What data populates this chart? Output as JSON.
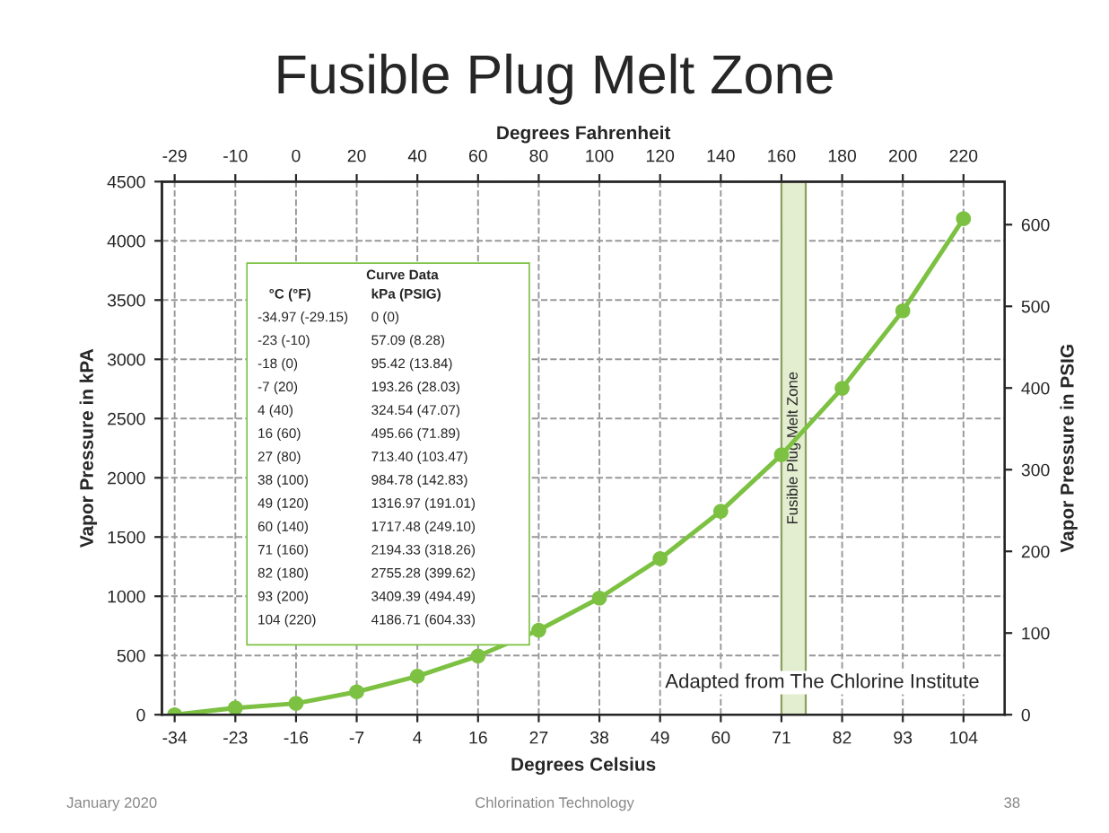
{
  "chart_data": {
    "type": "line",
    "title": "Fusible Plug Melt Zone",
    "xlabel": "Degrees Celsius",
    "ylabel": "Vapor Pressure in kPA",
    "y2label": "Vapor Pressure in PSIG",
    "x2label": "Degrees Fahrenheit",
    "categories": [
      "-34",
      "-23",
      "-16",
      "-7",
      "4",
      "16",
      "27",
      "38",
      "49",
      "60",
      "71",
      "82",
      "93",
      "104"
    ],
    "series": [
      {
        "color": "#7cc142",
        "values": [
          0,
          57.09,
          95.42,
          193.26,
          324.54,
          495.66,
          713.4,
          984.78,
          1316.97,
          1717.48,
          2194.33,
          2755.28,
          3409.39,
          4186.71
        ]
      }
    ],
    "bands": [
      {
        "axis": "x",
        "from": "71",
        "to": "71",
        "label": "Fusible Plug Melt Zone",
        "color": "#e3edcf"
      }
    ],
    "ylim": [
      0,
      4500
    ],
    "yticks": [
      0,
      500,
      1000,
      1500,
      2000,
      2500,
      3000,
      3500,
      4000,
      4500
    ],
    "y2lim": [
      0,
      652.7
    ],
    "y2ticks": [
      0,
      100,
      200,
      300,
      400,
      500,
      600
    ],
    "marker": "circle",
    "line_style": "solid",
    "grid": true,
    "legend": false,
    "annotations": [
      "Curve Data",
      "°C (°F)",
      "kPa (PSIG)",
      "-34.97 (-29.15)",
      "0 (0)",
      "-23 (-10)",
      "57.09 (8.28)",
      "-18 (0)",
      "95.42 (13.84)",
      "-7 (20)",
      "193.26 (28.03)",
      "4 (40)",
      "324.54 (47.07)",
      "16 (60)",
      "495.66 (71.89)",
      "27 (80)",
      "713.40 (103.47)",
      "38 (100)",
      "984.78 (142.83)",
      "49 (120)",
      "1316.97 (191.01)",
      "60 (140)",
      "1717.48 (249.10)",
      "71 (160)",
      "2194.33 (318.26)",
      "82 (180)",
      "2755.28 (399.62)",
      "93 (200)",
      "3409.39 (494.49)",
      "104 (220)",
      "4186.71 (604.33)",
      "Adapted from The Chlorine Institute",
      "January 2020",
      "Chlorination Technology",
      "38",
      "-29",
      "-10",
      "0",
      "20",
      "40",
      "60",
      "80",
      "100",
      "120",
      "140",
      "160",
      "180",
      "200",
      "220"
    ]
  }
}
